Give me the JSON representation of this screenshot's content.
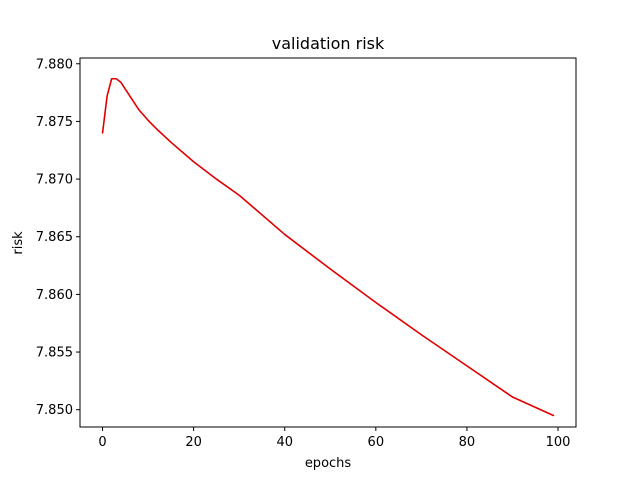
{
  "chart_data": {
    "type": "line",
    "title": "validation risk",
    "xlabel": "epochs",
    "ylabel": "risk",
    "xlim": [
      -4.95,
      103.95
    ],
    "ylim": [
      7.8485,
      7.8805
    ],
    "xticks": [
      0,
      20,
      40,
      60,
      80,
      100
    ],
    "xtick_labels": [
      "0",
      "20",
      "40",
      "60",
      "80",
      "100"
    ],
    "yticks": [
      7.85,
      7.855,
      7.86,
      7.865,
      7.87,
      7.875,
      7.88
    ],
    "ytick_labels": [
      "7.850",
      "7.855",
      "7.860",
      "7.865",
      "7.870",
      "7.875",
      "7.880"
    ],
    "grid": false,
    "series": [
      {
        "color": "#e00000",
        "x": [
          0,
          1,
          2,
          3,
          4,
          5,
          6,
          8,
          10,
          12,
          15,
          20,
          25,
          30,
          40,
          50,
          60,
          70,
          80,
          90,
          99
        ],
        "y": [
          7.874,
          7.8772,
          7.8787,
          7.8787,
          7.8784,
          7.8778,
          7.8772,
          7.876,
          7.8751,
          7.8743,
          7.8732,
          7.8715,
          7.87,
          7.8686,
          7.8652,
          7.8622,
          7.8593,
          7.8565,
          7.8538,
          7.8511,
          7.8495
        ]
      }
    ]
  }
}
